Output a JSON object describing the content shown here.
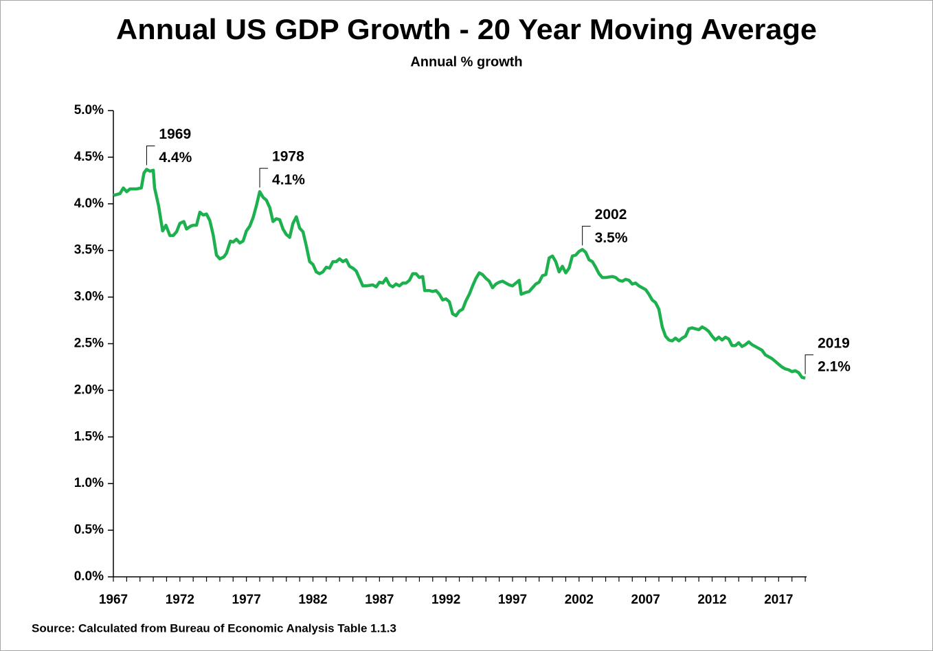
{
  "chart_data": {
    "type": "line",
    "title": "Annual US GDP Growth - 20 Year Moving Average",
    "subtitle": "Annual % growth",
    "source": "Source: Calculated  from Bureau of Economic Analysis Table  1.1.3",
    "xlim": [
      1967,
      2019.1
    ],
    "xticks": [
      1967,
      1972,
      1977,
      1982,
      1987,
      1992,
      1997,
      2002,
      2007,
      2012,
      2017
    ],
    "xminorticks": [
      1967,
      1968,
      1969,
      1970,
      1971,
      1972,
      1973,
      1974,
      1975,
      1976,
      1977,
      1978,
      1979,
      1980,
      1981,
      1982,
      1983,
      1984,
      1985,
      1986,
      1987,
      1988,
      1989,
      1990,
      1991,
      1992,
      1993,
      1994,
      1995,
      1996,
      1997,
      1998,
      1999,
      2000,
      2001,
      2002,
      2003,
      2004,
      2005,
      2006,
      2007,
      2008,
      2009,
      2010,
      2011,
      2012,
      2013,
      2014,
      2015,
      2016,
      2017,
      2018,
      2019
    ],
    "ylim": [
      0,
      5
    ],
    "yticks": [
      {
        "value": 0,
        "label": "0.0%"
      },
      {
        "value": 0.5,
        "label": "0.5%"
      },
      {
        "value": 1,
        "label": "1.0%"
      },
      {
        "value": 1.5,
        "label": "1.5%"
      },
      {
        "value": 2,
        "label": "2.0%"
      },
      {
        "value": 2.5,
        "label": "2.5%"
      },
      {
        "value": 3,
        "label": "3.0%"
      },
      {
        "value": 3.5,
        "label": "3.5%"
      },
      {
        "value": 4,
        "label": "4.0%"
      },
      {
        "value": 4.5,
        "label": "4.5%"
      },
      {
        "value": 5,
        "label": "5.0%"
      }
    ],
    "series": [
      {
        "name": "20 Year Moving Average",
        "color": "#1db04f",
        "x": [
          1967.0,
          1967.5,
          1967.75,
          1968.0,
          1968.25,
          1968.75,
          1969.1,
          1969.3,
          1969.5,
          1969.75,
          1970.0,
          1970.1,
          1970.4,
          1970.7,
          1970.95,
          1971.25,
          1971.5,
          1971.75,
          1972.0,
          1972.3,
          1972.5,
          1972.8,
          1973.0,
          1973.25,
          1973.5,
          1973.75,
          1974.0,
          1974.25,
          1974.5,
          1974.75,
          1975.0,
          1975.3,
          1975.5,
          1975.8,
          1976.0,
          1976.25,
          1976.5,
          1976.75,
          1977.0,
          1977.25,
          1977.5,
          1977.75,
          1978.0,
          1978.25,
          1978.5,
          1978.75,
          1979.0,
          1979.25,
          1979.5,
          1979.75,
          1980.0,
          1980.25,
          1980.5,
          1980.75,
          1981.0,
          1981.25,
          1981.5,
          1981.75,
          1982.0,
          1982.25,
          1982.5,
          1982.75,
          1983.0,
          1983.25,
          1983.5,
          1983.75,
          1984.0,
          1984.25,
          1984.5,
          1984.75,
          1985.0,
          1985.25,
          1985.5,
          1985.75,
          1986.0,
          1986.5,
          1986.75,
          1987.0,
          1987.25,
          1987.5,
          1987.75,
          1988.0,
          1988.25,
          1988.5,
          1988.75,
          1989.0,
          1989.25,
          1989.5,
          1989.75,
          1990.0,
          1990.25,
          1990.4,
          1990.75,
          1991.0,
          1991.25,
          1991.5,
          1991.75,
          1992.0,
          1992.25,
          1992.5,
          1992.75,
          1993.0,
          1993.25,
          1993.5,
          1993.75,
          1994.0,
          1994.25,
          1994.5,
          1994.75,
          1995.0,
          1995.25,
          1995.5,
          1995.75,
          1996.0,
          1996.25,
          1996.5,
          1996.75,
          1997.0,
          1997.25,
          1997.5,
          1997.65,
          1998.0,
          1998.25,
          1998.5,
          1998.75,
          1999.0,
          1999.25,
          1999.5,
          1999.75,
          2000.0,
          2000.25,
          2000.5,
          2000.75,
          2001.0,
          2001.25,
          2001.5,
          2001.75,
          2002.0,
          2002.25,
          2002.5,
          2002.75,
          2003.0,
          2003.25,
          2003.5,
          2003.75,
          2004.0,
          2004.5,
          2004.75,
          2005.0,
          2005.25,
          2005.5,
          2005.75,
          2006.0,
          2006.25,
          2006.5,
          2006.75,
          2007.0,
          2007.25,
          2007.5,
          2007.75,
          2008.0,
          2008.25,
          2008.5,
          2008.75,
          2009.0,
          2009.25,
          2009.5,
          2009.75,
          2010.0,
          2010.25,
          2010.5,
          2010.75,
          2011.0,
          2011.25,
          2011.5,
          2011.75,
          2012.0,
          2012.25,
          2012.5,
          2012.75,
          2013.0,
          2013.25,
          2013.5,
          2013.75,
          2014.0,
          2014.25,
          2014.5,
          2014.75,
          2015.0,
          2015.25,
          2015.5,
          2015.75,
          2016.0,
          2016.25,
          2016.5,
          2016.75,
          2017.0,
          2017.25,
          2017.5,
          2017.75,
          2018.0,
          2018.25,
          2018.5,
          2018.75,
          2019.0
        ],
        "values": [
          4.09,
          4.11,
          4.17,
          4.13,
          4.16,
          4.16,
          4.17,
          4.33,
          4.37,
          4.35,
          4.36,
          4.17,
          3.98,
          3.71,
          3.77,
          3.66,
          3.66,
          3.7,
          3.79,
          3.81,
          3.73,
          3.76,
          3.77,
          3.77,
          3.91,
          3.88,
          3.89,
          3.82,
          3.67,
          3.45,
          3.41,
          3.43,
          3.47,
          3.6,
          3.59,
          3.62,
          3.58,
          3.6,
          3.71,
          3.76,
          3.85,
          3.98,
          4.13,
          4.07,
          4.04,
          3.96,
          3.81,
          3.84,
          3.83,
          3.73,
          3.67,
          3.64,
          3.79,
          3.86,
          3.74,
          3.7,
          3.55,
          3.38,
          3.35,
          3.27,
          3.25,
          3.27,
          3.32,
          3.31,
          3.38,
          3.38,
          3.41,
          3.38,
          3.4,
          3.33,
          3.31,
          3.28,
          3.2,
          3.12,
          3.12,
          3.13,
          3.11,
          3.16,
          3.15,
          3.2,
          3.13,
          3.11,
          3.14,
          3.12,
          3.15,
          3.15,
          3.18,
          3.25,
          3.25,
          3.21,
          3.22,
          3.07,
          3.07,
          3.06,
          3.07,
          3.03,
          2.97,
          2.98,
          2.95,
          2.82,
          2.8,
          2.85,
          2.87,
          2.96,
          3.03,
          3.12,
          3.2,
          3.26,
          3.24,
          3.2,
          3.17,
          3.1,
          3.14,
          3.16,
          3.17,
          3.15,
          3.13,
          3.12,
          3.15,
          3.18,
          3.03,
          3.05,
          3.06,
          3.1,
          3.14,
          3.16,
          3.23,
          3.24,
          3.42,
          3.44,
          3.38,
          3.27,
          3.33,
          3.26,
          3.31,
          3.44,
          3.45,
          3.49,
          3.51,
          3.48,
          3.4,
          3.38,
          3.32,
          3.25,
          3.21,
          3.21,
          3.22,
          3.21,
          3.18,
          3.17,
          3.19,
          3.18,
          3.14,
          3.15,
          3.12,
          3.1,
          3.08,
          3.03,
          2.97,
          2.94,
          2.87,
          2.68,
          2.58,
          2.54,
          2.53,
          2.56,
          2.53,
          2.56,
          2.58,
          2.66,
          2.67,
          2.66,
          2.65,
          2.68,
          2.66,
          2.63,
          2.58,
          2.54,
          2.57,
          2.54,
          2.57,
          2.55,
          2.48,
          2.48,
          2.51,
          2.47,
          2.49,
          2.52,
          2.49,
          2.47,
          2.45,
          2.43,
          2.38,
          2.36,
          2.34,
          2.31,
          2.28,
          2.25,
          2.23,
          2.22,
          2.2,
          2.21,
          2.19,
          2.14,
          2.13
        ]
      }
    ],
    "annotations": [
      {
        "x": 1969.5,
        "label": "1969",
        "value_label": "4.4%"
      },
      {
        "x": 1978.0,
        "label": "1978",
        "value_label": "4.1%"
      },
      {
        "x": 2002.25,
        "label": "2002",
        "value_label": "3.5%"
      },
      {
        "x": 2019.0,
        "label": "2019",
        "value_label": "2.1%"
      }
    ]
  }
}
